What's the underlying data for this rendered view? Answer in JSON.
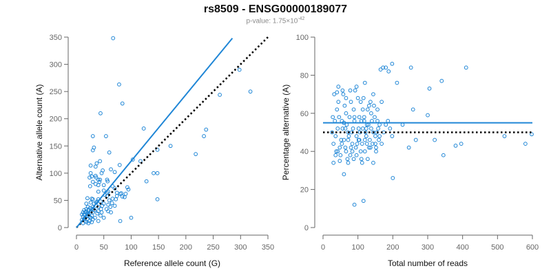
{
  "title": "rs8509 - ENSG00000189077",
  "subtitle": {
    "prefix": "p-value: 1.75×10",
    "exponent": "-42"
  },
  "colors": {
    "points": "#1f86d6",
    "fit_line": "#1f86d6",
    "reference_line": "#000000",
    "axis": "#666666"
  },
  "chart_data": [
    {
      "type": "scatter",
      "xlabel": "Reference allele count (G)",
      "ylabel": "Alternative allele count (A)",
      "xlim": [
        0,
        350
      ],
      "ylim": [
        0,
        350
      ],
      "xticks": [
        "0",
        "50",
        "100",
        "150",
        "200",
        "250",
        "300",
        "350"
      ],
      "yticks": [
        "0",
        "50",
        "100",
        "150",
        "200",
        "250",
        "300",
        "350"
      ],
      "fit_line": [
        [
          0,
          0
        ],
        [
          285,
          348
        ]
      ],
      "reference_line": [
        [
          0,
          0
        ],
        [
          350,
          350
        ]
      ],
      "points": [
        [
          67,
          348
        ],
        [
          78,
          263
        ],
        [
          84,
          228
        ],
        [
          44,
          210
        ],
        [
          123,
          182
        ],
        [
          237,
          180
        ],
        [
          233,
          168
        ],
        [
          30,
          168
        ],
        [
          54,
          168
        ],
        [
          172,
          150
        ],
        [
          32,
          147
        ],
        [
          148,
          143
        ],
        [
          30,
          142
        ],
        [
          218,
          135
        ],
        [
          60,
          138
        ],
        [
          103,
          125
        ],
        [
          117,
          122
        ],
        [
          43,
          122
        ],
        [
          37,
          118
        ],
        [
          79,
          115
        ],
        [
          26,
          114
        ],
        [
          35,
          112
        ],
        [
          63,
          107
        ],
        [
          48,
          105
        ],
        [
          70,
          102
        ],
        [
          46,
          100
        ],
        [
          141,
          100
        ],
        [
          148,
          100
        ],
        [
          26,
          100
        ],
        [
          35,
          95
        ],
        [
          28,
          94
        ],
        [
          36,
          92
        ],
        [
          24,
          92
        ],
        [
          40,
          88
        ],
        [
          43,
          88
        ],
        [
          56,
          88
        ],
        [
          30,
          84
        ],
        [
          42,
          84
        ],
        [
          57,
          85
        ],
        [
          128,
          85
        ],
        [
          35,
          80
        ],
        [
          40,
          78
        ],
        [
          50,
          78
        ],
        [
          25,
          76
        ],
        [
          66,
          76
        ],
        [
          93,
          74
        ],
        [
          70,
          72
        ],
        [
          95,
          70
        ],
        [
          50,
          68
        ],
        [
          40,
          66
        ],
        [
          58,
          66
        ],
        [
          56,
          64
        ],
        [
          74,
          64
        ],
        [
          82,
          63
        ],
        [
          90,
          62
        ],
        [
          80,
          62
        ],
        [
          52,
          60
        ],
        [
          56,
          58
        ],
        [
          74,
          58
        ],
        [
          84,
          57
        ],
        [
          88,
          56
        ],
        [
          20,
          54
        ],
        [
          28,
          53
        ],
        [
          66,
          53
        ],
        [
          30,
          52
        ],
        [
          40,
          52
        ],
        [
          72,
          52
        ],
        [
          60,
          50
        ],
        [
          38,
          48
        ],
        [
          44,
          48
        ],
        [
          26,
          46
        ],
        [
          36,
          46
        ],
        [
          18,
          44
        ],
        [
          50,
          44
        ],
        [
          32,
          44
        ],
        [
          58,
          42
        ],
        [
          47,
          40
        ],
        [
          36,
          40
        ],
        [
          21,
          38
        ],
        [
          30,
          38
        ],
        [
          40,
          38
        ],
        [
          62,
          38
        ],
        [
          25,
          36
        ],
        [
          18,
          34
        ],
        [
          28,
          34
        ],
        [
          45,
          34
        ],
        [
          55,
          34
        ],
        [
          14,
          32
        ],
        [
          22,
          32
        ],
        [
          33,
          32
        ],
        [
          40,
          30
        ],
        [
          18,
          30
        ],
        [
          26,
          30
        ],
        [
          12,
          28
        ],
        [
          16,
          28
        ],
        [
          30,
          28
        ],
        [
          20,
          26
        ],
        [
          38,
          26
        ],
        [
          10,
          24
        ],
        [
          14,
          24
        ],
        [
          22,
          24
        ],
        [
          28,
          22
        ],
        [
          44,
          22
        ],
        [
          18,
          20
        ],
        [
          24,
          20
        ],
        [
          12,
          20
        ],
        [
          16,
          18
        ],
        [
          26,
          18
        ],
        [
          34,
          18
        ],
        [
          50,
          18
        ],
        [
          20,
          16
        ],
        [
          14,
          16
        ],
        [
          30,
          15
        ],
        [
          10,
          14
        ],
        [
          16,
          12
        ],
        [
          24,
          12
        ],
        [
          40,
          12
        ],
        [
          18,
          10
        ],
        [
          28,
          10
        ],
        [
          12,
          8
        ],
        [
          22,
          8
        ],
        [
          65,
          45
        ],
        [
          70,
          40
        ],
        [
          58,
          30
        ],
        [
          63,
          28
        ],
        [
          46,
          28
        ],
        [
          100,
          18
        ],
        [
          80,
          12
        ],
        [
          148,
          52
        ],
        [
          262,
          244
        ],
        [
          298,
          290
        ],
        [
          318,
          250
        ]
      ]
    },
    {
      "type": "scatter",
      "xlabel": "Total number of reads",
      "ylabel": "Percentage alternative (A)",
      "xlim": [
        0,
        600
      ],
      "ylim": [
        0,
        100
      ],
      "xticks": [
        "0",
        "100",
        "200",
        "300",
        "400",
        "500",
        "600"
      ],
      "yticks": [
        "0",
        "20",
        "40",
        "60",
        "80",
        "100"
      ],
      "fit_line": [
        [
          0,
          55
        ],
        [
          600,
          55
        ]
      ],
      "reference_line": [
        [
          0,
          50
        ],
        [
          600,
          50
        ]
      ],
      "points": [
        [
          42,
          52
        ],
        [
          48,
          42
        ],
        [
          54,
          56
        ],
        [
          60,
          46
        ],
        [
          66,
          60
        ],
        [
          72,
          50
        ],
        [
          78,
          38
        ],
        [
          84,
          44
        ],
        [
          90,
          58
        ],
        [
          96,
          48
        ],
        [
          102,
          52
        ],
        [
          108,
          40
        ],
        [
          114,
          62
        ],
        [
          120,
          46
        ],
        [
          126,
          54
        ],
        [
          132,
          42
        ],
        [
          138,
          60
        ],
        [
          144,
          50
        ],
        [
          150,
          44
        ],
        [
          156,
          56
        ],
        [
          162,
          48
        ],
        [
          40,
          62
        ],
        [
          50,
          38
        ],
        [
          58,
          70
        ],
        [
          62,
          64
        ],
        [
          68,
          54
        ],
        [
          74,
          48
        ],
        [
          80,
          66
        ],
        [
          86,
          52
        ],
        [
          92,
          72
        ],
        [
          98,
          44
        ],
        [
          104,
          58
        ],
        [
          110,
          36
        ],
        [
          116,
          68
        ],
        [
          122,
          50
        ],
        [
          128,
          62
        ],
        [
          134,
          46
        ],
        [
          140,
          56
        ],
        [
          146,
          64
        ],
        [
          152,
          40
        ],
        [
          158,
          52
        ],
        [
          30,
          44
        ],
        [
          34,
          56
        ],
        [
          36,
          48
        ],
        [
          38,
          40
        ],
        [
          44,
          66
        ],
        [
          46,
          58
        ],
        [
          52,
          46
        ],
        [
          56,
          52
        ],
        [
          64,
          42
        ],
        [
          70,
          36
        ],
        [
          76,
          58
        ],
        [
          82,
          50
        ],
        [
          88,
          62
        ],
        [
          94,
          42
        ],
        [
          100,
          68
        ],
        [
          106,
          50
        ],
        [
          112,
          44
        ],
        [
          118,
          56
        ],
        [
          124,
          48
        ],
        [
          130,
          54
        ],
        [
          136,
          66
        ],
        [
          142,
          44
        ],
        [
          148,
          58
        ],
        [
          154,
          50
        ],
        [
          28,
          58
        ],
        [
          26,
          50
        ],
        [
          32,
          70
        ],
        [
          40,
          71
        ],
        [
          44,
          74
        ],
        [
          56,
          72
        ],
        [
          60,
          55
        ],
        [
          66,
          68
        ],
        [
          72,
          46
        ],
        [
          78,
          72
        ],
        [
          84,
          40
        ],
        [
          90,
          56
        ],
        [
          96,
          74
        ],
        [
          102,
          46
        ],
        [
          108,
          66
        ],
        [
          114,
          52
        ],
        [
          120,
          76
        ],
        [
          126,
          44
        ],
        [
          132,
          64
        ],
        [
          138,
          52
        ],
        [
          144,
          70
        ],
        [
          150,
          48
        ],
        [
          156,
          62
        ],
        [
          162,
          54
        ],
        [
          168,
          66
        ],
        [
          30,
          34
        ],
        [
          36,
          38
        ],
        [
          42,
          40
        ],
        [
          48,
          35
        ],
        [
          54,
          44
        ],
        [
          60,
          28
        ],
        [
          66,
          40
        ],
        [
          72,
          34
        ],
        [
          80,
          42
        ],
        [
          88,
          36
        ],
        [
          96,
          38
        ],
        [
          104,
          46
        ],
        [
          112,
          34
        ],
        [
          120,
          40
        ],
        [
          128,
          36
        ],
        [
          136,
          42
        ],
        [
          144,
          34
        ],
        [
          152,
          42
        ],
        [
          160,
          46
        ],
        [
          168,
          44
        ],
        [
          174,
          50
        ],
        [
          180,
          54
        ],
        [
          186,
          56
        ],
        [
          192,
          52
        ],
        [
          198,
          48
        ],
        [
          165,
          83
        ],
        [
          172,
          84
        ],
        [
          180,
          84
        ],
        [
          188,
          82
        ],
        [
          198,
          86
        ],
        [
          212,
          76
        ],
        [
          252,
          84
        ],
        [
          258,
          62
        ],
        [
          228,
          54
        ],
        [
          246,
          42
        ],
        [
          266,
          46
        ],
        [
          300,
          59
        ],
        [
          305,
          73
        ],
        [
          320,
          46
        ],
        [
          340,
          77
        ],
        [
          345,
          38
        ],
        [
          380,
          43
        ],
        [
          396,
          44
        ],
        [
          410,
          84
        ],
        [
          520,
          48
        ],
        [
          580,
          44
        ],
        [
          598,
          49
        ],
        [
          200,
          26
        ],
        [
          116,
          14
        ],
        [
          90,
          12
        ],
        [
          60,
          55
        ],
        [
          64,
          52
        ],
        [
          110,
          56
        ],
        [
          118,
          58
        ],
        [
          124,
          52
        ]
      ]
    }
  ]
}
